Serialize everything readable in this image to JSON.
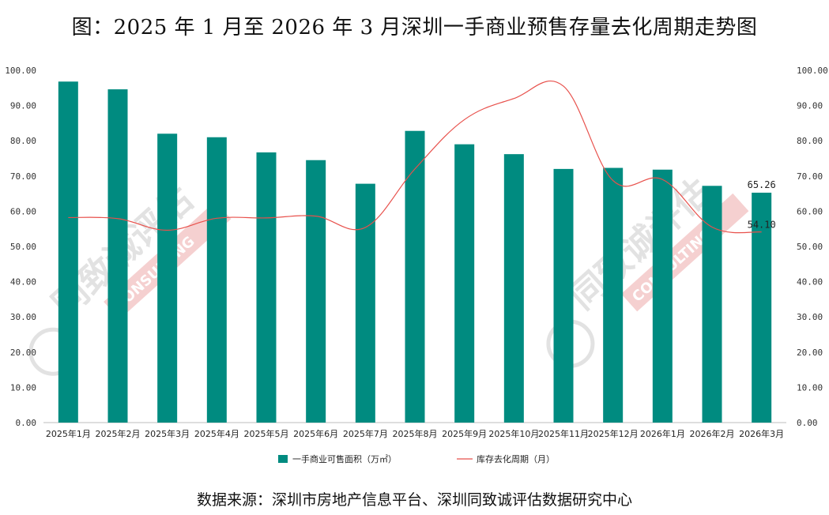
{
  "title": "图：2025 年 1 月至 2026 年 3 月深圳一手商业预售存量去化周期走势图",
  "source": "数据来源：深圳市房地产信息平台、深圳同致诚评估数据研究中心",
  "watermark": {
    "left_text": "同致诚评估",
    "right_text": "同致诚评估",
    "sub_text": "CONSULTING",
    "bar_color": "#f5d0d0",
    "text_color": "#e2e2e2"
  },
  "colors": {
    "bar": "#008b80",
    "line": "#e8514c",
    "axis": "#bdbdbd"
  },
  "chart_data": {
    "type": "bar",
    "title": "图：2025 年 1 月至 2026 年 3 月深圳一手商业预售存量去化周期走势图",
    "categories": [
      "2025年1月",
      "2025年2月",
      "2025年3月",
      "2025年4月",
      "2025年5月",
      "2025年6月",
      "2025年7月",
      "2025年8月",
      "2025年9月",
      "2025年10月",
      "2025年11月",
      "2025年12月",
      "2026年1月",
      "2026年2月",
      "2026年3月"
    ],
    "series": [
      {
        "name": "一手商业可售面积（万㎡）",
        "type": "bar",
        "axis": "left",
        "values": [
          96.8,
          94.6,
          82.0,
          81.0,
          76.7,
          74.5,
          67.8,
          82.8,
          79.0,
          76.2,
          72.0,
          72.3,
          71.8,
          67.2,
          65.26
        ]
      },
      {
        "name": "库存去化周期（月）",
        "type": "line",
        "axis": "right",
        "values": [
          58.2,
          57.9,
          54.6,
          58.0,
          58.1,
          58.6,
          55.4,
          72.0,
          86.0,
          92.0,
          95.5,
          68.7,
          69.0,
          55.5,
          54.1
        ]
      }
    ],
    "data_labels": [
      {
        "series": 0,
        "index": 14,
        "text": "65.26"
      },
      {
        "series": 1,
        "index": 14,
        "text": "54.10"
      }
    ],
    "ylim": [
      0,
      100
    ],
    "y_ticks": [
      "0.00",
      "10.00",
      "20.00",
      "30.00",
      "40.00",
      "50.00",
      "60.00",
      "70.00",
      "80.00",
      "90.00",
      "100.00"
    ],
    "y2lim": [
      0,
      100
    ],
    "y2_ticks": [
      "0.00",
      "10.00",
      "20.00",
      "30.00",
      "40.00",
      "50.00",
      "60.00",
      "70.00",
      "80.00",
      "90.00",
      "100.00"
    ],
    "legend": "bottom",
    "grid": false,
    "xlabel": "",
    "ylabel": ""
  }
}
